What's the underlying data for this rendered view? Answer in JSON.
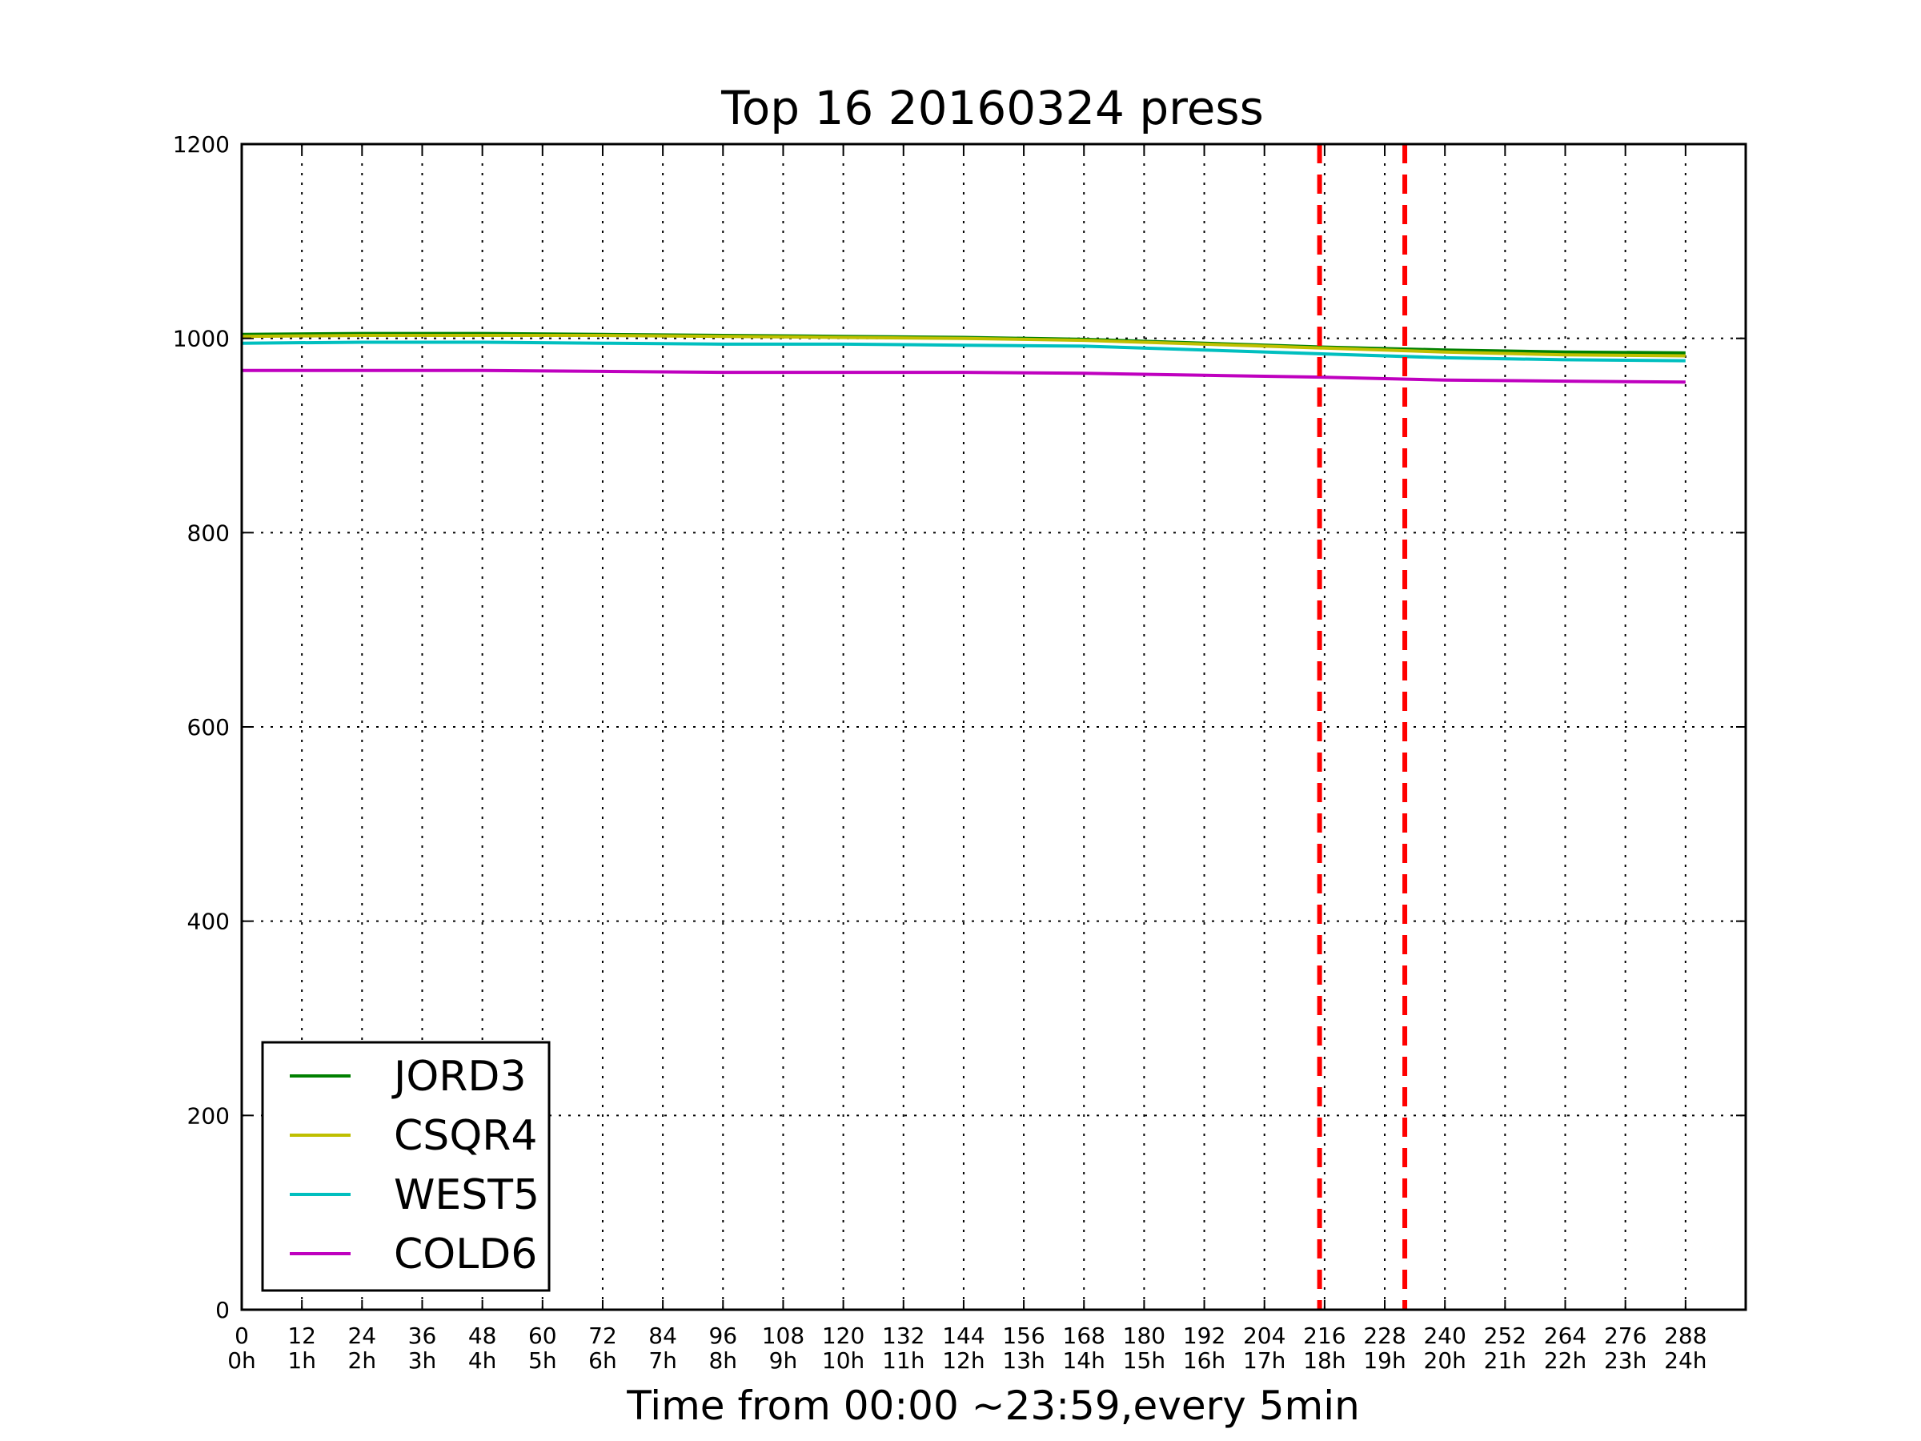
{
  "chart_data": {
    "type": "line",
    "title": "Top 16 20160324 press",
    "xlabel": "Time from 00:00 ~23:59,every 5min",
    "ylabel": "",
    "xlim": [
      0,
      300
    ],
    "ylim": [
      0,
      1200
    ],
    "grid": true,
    "x_ticks": [
      0,
      12,
      24,
      36,
      48,
      60,
      72,
      84,
      96,
      108,
      120,
      132,
      144,
      156,
      168,
      180,
      192,
      204,
      216,
      228,
      240,
      252,
      264,
      276,
      288
    ],
    "x_tick_labels": [
      "0",
      "12",
      "24",
      "36",
      "48",
      "60",
      "72",
      "84",
      "96",
      "108",
      "120",
      "132",
      "144",
      "156",
      "168",
      "180",
      "192",
      "204",
      "216",
      "228",
      "240",
      "252",
      "264",
      "276",
      "288"
    ],
    "x_tick_sublabels": [
      "0h",
      "1h",
      "2h",
      "3h",
      "4h",
      "5h",
      "6h",
      "7h",
      "8h",
      "9h",
      "10h",
      "11h",
      "12h",
      "13h",
      "14h",
      "15h",
      "16h",
      "17h",
      "18h",
      "19h",
      "20h",
      "21h",
      "22h",
      "23h",
      "24h"
    ],
    "y_ticks": [
      0,
      200,
      400,
      600,
      800,
      1000,
      1200
    ],
    "y_tick_labels": [
      "0",
      "200",
      "400",
      "600",
      "800",
      "1000",
      "1200"
    ],
    "x": [
      0,
      24,
      48,
      72,
      96,
      120,
      144,
      168,
      192,
      216,
      240,
      264,
      288
    ],
    "series": [
      {
        "name": "JORD3",
        "color": "#008000",
        "values": [
          1004,
          1005,
          1005,
          1004,
          1003,
          1002,
          1001,
          999,
          995,
          991,
          988,
          986,
          985
        ]
      },
      {
        "name": "CSQR4",
        "color": "#bfbf00",
        "values": [
          1002,
          1003,
          1003,
          1003,
          1002,
          1001,
          1000,
          998,
          994,
          990,
          986,
          983,
          982
        ]
      },
      {
        "name": "WEST5",
        "color": "#00bfbf",
        "values": [
          995,
          996,
          996,
          995,
          994,
          994,
          993,
          992,
          988,
          984,
          980,
          978,
          977
        ]
      },
      {
        "name": "COLD6",
        "color": "#bf00bf",
        "values": [
          967,
          967,
          967,
          966,
          965,
          965,
          965,
          964,
          962,
          960,
          957,
          956,
          955
        ]
      }
    ],
    "vlines": [
      {
        "x": 215,
        "color": "#ff0000",
        "style": "dashed"
      },
      {
        "x": 232,
        "color": "#ff0000",
        "style": "dashed"
      }
    ],
    "legend": {
      "position": "lower-left"
    }
  }
}
